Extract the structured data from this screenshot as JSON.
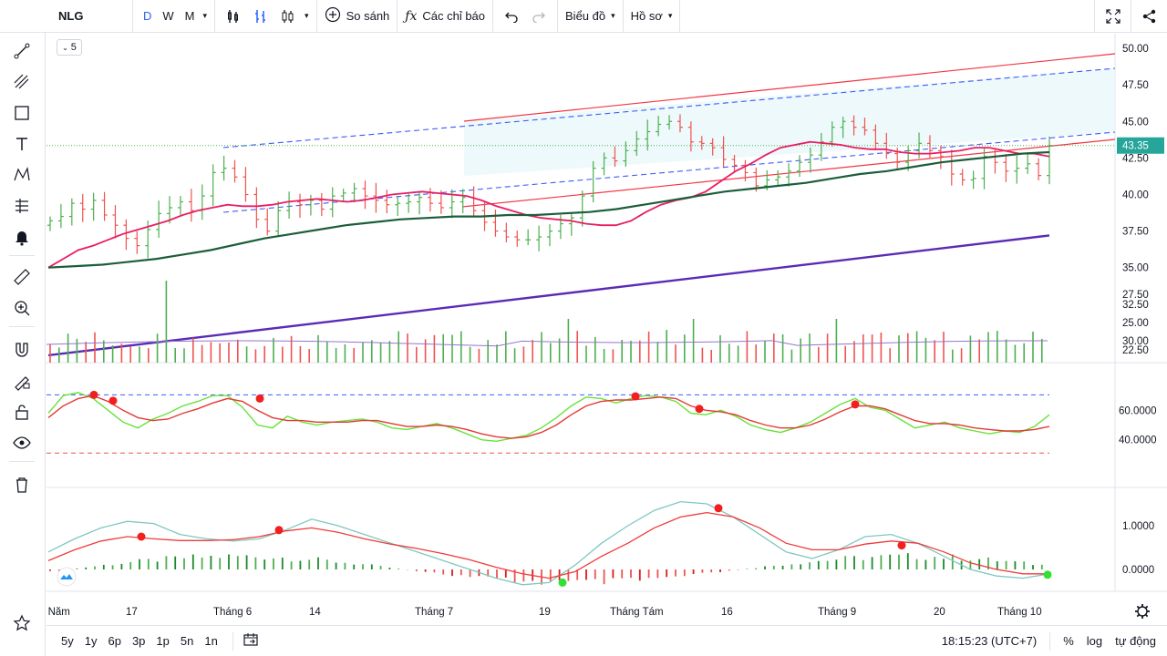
{
  "toolbar": {
    "symbol": "NLG",
    "intervals": [
      "D",
      "W",
      "M"
    ],
    "compare_label": "So sánh",
    "indicators_label": "Các chỉ báo",
    "chart_label": "Biểu đồ",
    "profile_label": "Hồ sơ"
  },
  "badge_count": "5",
  "bottom": {
    "ranges": [
      "5y",
      "1y",
      "6p",
      "3p",
      "1p",
      "5n",
      "1n"
    ],
    "time": "18:15:23 (UTC+7)",
    "percent_label": "%",
    "log_label": "log",
    "auto_label": "tự động"
  },
  "price_badge": "43.35",
  "price_axis_labels": [
    "50.00",
    "47.50",
    "45.00",
    "42.50",
    "40.00",
    "37.50",
    "35.00",
    "32.50",
    "30.00",
    "27.50",
    "25.00",
    "22.50"
  ],
  "osc_axis_labels": [
    "60.0000",
    "40.0000"
  ],
  "macd_axis_labels": [
    "1.0000",
    "0.0000"
  ],
  "time_axis_labels": [
    "g Năm",
    "17",
    "Tháng 6",
    "14",
    "Tháng 7",
    "19",
    "Tháng Tám",
    "16",
    "Tháng 9",
    "20",
    "Tháng 10"
  ],
  "colors": {
    "up": "#26a69a",
    "up_green": "#4caf50",
    "down": "#ef5350",
    "ma_fast": "#e91e63",
    "ma_slow": "#1b5e3b",
    "trend": "#5b2bb5",
    "channel": "#f23645",
    "dash": "#3d5afe",
    "accent": "#2962ff"
  },
  "chart_data": {
    "type": "candlestick",
    "symbol": "NLG",
    "ylim": [
      28.5,
      51
    ],
    "price_axis_ticks": [
      50.0,
      47.5,
      45.0,
      42.5,
      40.0,
      37.5,
      35.0,
      32.5,
      30.0,
      27.5,
      25.0,
      22.5
    ],
    "last_price": 43.35,
    "x_labels": [
      "g Năm",
      "17",
      "Tháng 6",
      "14",
      "Tháng 7",
      "19",
      "Tháng Tám",
      "16",
      "Tháng 9",
      "20",
      "Tháng 10"
    ],
    "close_series": [
      38.2,
      38.5,
      39.4,
      39.0,
      39.6,
      38.6,
      37.9,
      37.0,
      36.5,
      37.6,
      38.7,
      39.1,
      39.5,
      38.9,
      39.9,
      41.5,
      41.8,
      41.2,
      40.0,
      38.3,
      37.5,
      38.9,
      39.5,
      39.3,
      39.6,
      39.0,
      39.9,
      40.1,
      40.4,
      39.9,
      39.6,
      39.3,
      39.4,
      39.5,
      39.8,
      39.4,
      39.1,
      39.5,
      39.8,
      38.9,
      38.1,
      37.5,
      37.1,
      36.9,
      36.9,
      37.1,
      37.5,
      38.0,
      38.4,
      39.9,
      41.8,
      42.5,
      42.3,
      43.0,
      43.8,
      44.3,
      44.8,
      45.0,
      44.6,
      43.6,
      43.5,
      43.2,
      42.4,
      42.0,
      41.5,
      40.6,
      41.0,
      41.2,
      41.6,
      42.2,
      42.7,
      43.6,
      44.6,
      45.0,
      44.6,
      44.4,
      43.5,
      42.8,
      42.2,
      43.0,
      43.5,
      43.0,
      42.6,
      41.4,
      41.0,
      41.1,
      42.6,
      42.2,
      41.6,
      41.8,
      42.1,
      41.3,
      43.35
    ],
    "ma_fast": [
      35.0,
      35.6,
      36.2,
      36.5,
      36.9,
      37.3,
      37.6,
      37.9,
      38.2,
      38.6,
      38.9,
      39.1,
      39.3,
      39.2,
      39.2,
      39.3,
      39.5,
      39.6,
      39.7,
      39.6,
      39.5,
      39.6,
      39.8,
      40.0,
      40.1,
      40.2,
      40.1,
      40.0,
      39.9,
      39.6,
      39.2,
      38.9,
      38.6,
      38.4,
      38.3,
      38.2,
      38.0,
      37.9,
      37.9,
      38.2,
      38.8,
      39.3,
      39.6,
      39.8,
      40.2,
      40.9,
      41.6,
      42.1,
      42.7,
      43.2,
      43.4,
      43.6,
      43.5,
      43.4,
      43.2,
      43.1,
      43.1,
      42.9,
      42.8,
      42.8,
      42.9,
      43.0,
      43.2,
      43.2,
      43.0,
      42.8,
      42.8,
      42.6
    ],
    "ma_slow": [
      35.0,
      35.1,
      35.2,
      35.4,
      35.6,
      35.9,
      36.2,
      36.6,
      37.0,
      37.3,
      37.6,
      37.9,
      38.1,
      38.3,
      38.4,
      38.5,
      38.5,
      38.6,
      38.6,
      38.7,
      38.8,
      39.0,
      39.3,
      39.6,
      39.9,
      40.2,
      40.4,
      40.6,
      40.8,
      41.1,
      41.4,
      41.6,
      41.9,
      42.2,
      42.4,
      42.6,
      42.8,
      42.9
    ],
    "trendline": {
      "from": 29.0,
      "to": 37.2
    },
    "volume_ticks": [
      22.5,
      25.0,
      27.5
    ],
    "oscillator_ticks": [
      60.0,
      40.0
    ],
    "macd_ticks": [
      1.0,
      0.0
    ]
  }
}
